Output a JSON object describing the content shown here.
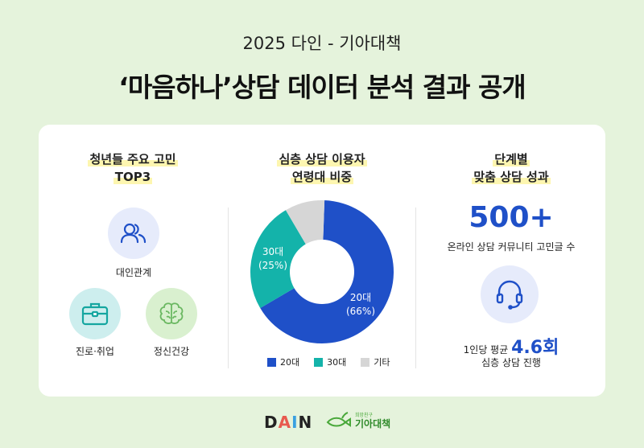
{
  "header": {
    "subtitle": "2025 다인 - 기아대책",
    "title": "‘마음하나’상담 데이터 분석 결과 공개"
  },
  "left": {
    "heading_line1": "청년들 주요 고민",
    "heading_line2": "TOP3",
    "items": [
      {
        "label": "대인관계",
        "icon": "people-icon"
      },
      {
        "label": "진로·취업",
        "icon": "briefcase-icon"
      },
      {
        "label": "정신건강",
        "icon": "brain-icon"
      }
    ]
  },
  "chart_data": {
    "type": "pie",
    "donut": true,
    "title_line1": "심층 상담 이용자",
    "title_line2": "연령대 비중",
    "categories": [
      "20대",
      "30대",
      "기타"
    ],
    "values": [
      66,
      25,
      9
    ],
    "data_labels": [
      {
        "name": "20대",
        "pct": "(66%)"
      },
      {
        "name": "30대",
        "pct": "(25%)"
      }
    ],
    "colors": [
      "#1f50c8",
      "#14b3aa",
      "#d6d6d6"
    ],
    "legend": "bottom"
  },
  "right": {
    "heading_line1": "단계별",
    "heading_line2": "맞춤 상담 성과",
    "big_number": "500+",
    "big_caption": "온라인 상담 커뮤니티 고민글 수",
    "avg_prefix": "1인당 평균",
    "avg_value": "4.6회",
    "avg_caption": "심층 상담 진행"
  },
  "footer": {
    "logo1": "DAIN",
    "logo2_small": "희망친구",
    "logo2": "기아대책"
  },
  "colors": {
    "background": "#e5f3dc",
    "accent": "#1f50c8",
    "teal": "#14b3aa"
  }
}
